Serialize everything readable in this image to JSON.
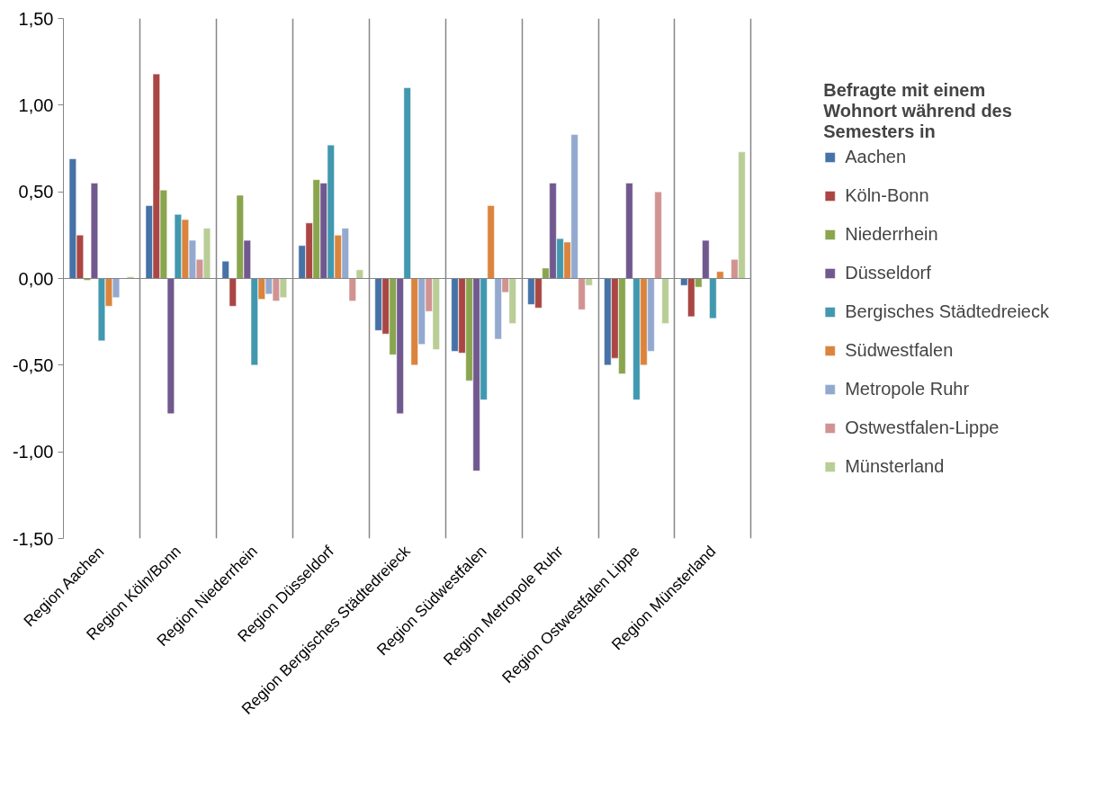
{
  "chart_data": {
    "type": "bar",
    "legend_title": "Befragte mit einem Wohnort während des Semesters in",
    "categories": [
      "Region Aachen",
      "Region Köln/Bonn",
      "Region Niederrhein",
      "Region Düsseldorf",
      "Region Bergisches Städtedreieck",
      "Region Südwestfalen",
      "Region Metropole Ruhr",
      "Region Ostwestfalen Lippe",
      "Region Münsterland"
    ],
    "series": [
      {
        "name": "Aachen",
        "color": "#4572a7",
        "values": [
          0.69,
          0.42,
          0.1,
          0.19,
          -0.3,
          -0.42,
          -0.15,
          -0.5,
          -0.04
        ]
      },
      {
        "name": "Köln-Bonn",
        "color": "#aa4643",
        "values": [
          0.25,
          1.18,
          -0.16,
          0.32,
          -0.32,
          -0.43,
          -0.17,
          -0.46,
          -0.22
        ]
      },
      {
        "name": "Niederrhein",
        "color": "#89a54e",
        "values": [
          -0.01,
          0.51,
          0.48,
          0.57,
          -0.44,
          -0.59,
          0.06,
          -0.55,
          -0.05
        ]
      },
      {
        "name": "Düsseldorf",
        "color": "#71588f",
        "values": [
          0.55,
          -0.78,
          0.22,
          0.55,
          -0.78,
          -1.11,
          0.55,
          0.55,
          0.22
        ]
      },
      {
        "name": "Bergisches Städtedreieck",
        "color": "#4198af",
        "values": [
          -0.36,
          0.37,
          -0.5,
          0.77,
          1.1,
          -0.7,
          0.23,
          -0.7,
          -0.23
        ]
      },
      {
        "name": "Südwestfalen",
        "color": "#db843d",
        "values": [
          -0.16,
          0.34,
          -0.12,
          0.25,
          -0.5,
          0.42,
          0.21,
          -0.5,
          0.04
        ]
      },
      {
        "name": "Metropole Ruhr",
        "color": "#93a9cf",
        "values": [
          -0.11,
          0.22,
          -0.09,
          0.29,
          -0.38,
          -0.35,
          0.83,
          -0.42,
          null
        ]
      },
      {
        "name": "Ostwestfalen-Lippe",
        "color": "#d19392",
        "values": [
          null,
          0.11,
          -0.13,
          -0.13,
          -0.19,
          -0.08,
          -0.18,
          0.5,
          0.11
        ]
      },
      {
        "name": "Münsterland",
        "color": "#b9cd96",
        "values": [
          0.01,
          0.29,
          -0.11,
          0.05,
          -0.41,
          -0.26,
          -0.04,
          -0.26,
          0.73
        ]
      }
    ],
    "ylim": [
      -1.5,
      1.5
    ],
    "yticks": [
      {
        "value": -1.5,
        "label": "-1,50"
      },
      {
        "value": -1.0,
        "label": "-1,00"
      },
      {
        "value": -0.5,
        "label": "-0,50"
      },
      {
        "value": 0,
        "label": "0,00"
      },
      {
        "value": 0.5,
        "label": "0,50"
      },
      {
        "value": 1.0,
        "label": "1,00"
      },
      {
        "value": 1.5,
        "label": "1,50"
      }
    ],
    "grid": "x",
    "legend": "right"
  }
}
